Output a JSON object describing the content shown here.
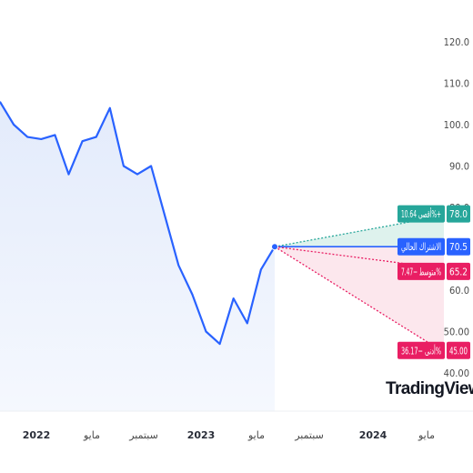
{
  "chart_data": {
    "type": "line",
    "x": [
      "2021-10",
      "2021-11",
      "2021-12",
      "2022-01",
      "2022-02",
      "2022-03",
      "2022-04",
      "2022-05",
      "2022-06",
      "2022-07",
      "2022-08",
      "2022-09",
      "2022-10",
      "2022-11",
      "2022-12",
      "2023-01",
      "2023-02",
      "2023-03",
      "2023-04",
      "2023-05",
      "2023-06"
    ],
    "series": [
      {
        "values": [
          105.5,
          100.0,
          97.0,
          96.5,
          97.5,
          88.0,
          96.0,
          97.0,
          104.0,
          90.0,
          88.0,
          90.0,
          78.0,
          66.0,
          59.0,
          50.0,
          47.0,
          58.0,
          52.0,
          65.0,
          70.5
        ],
        "color": "#2962ff"
      }
    ],
    "ylim": [
      40,
      120
    ],
    "yticks": [
      "120.0",
      "110.0",
      "100.0",
      "90.0",
      "80.0",
      "70.0",
      "60.0",
      "50.00",
      "40.00"
    ],
    "x_tick_labels": [
      {
        "label": "2022",
        "year": true
      },
      {
        "label": "مايو",
        "year": false
      },
      {
        "label": "سبتمبر",
        "year": false
      },
      {
        "label": "2023",
        "year": true
      },
      {
        "label": "مايو",
        "year": false
      },
      {
        "label": "سبتمبر",
        "year": false
      },
      {
        "label": "2024",
        "year": true
      },
      {
        "label": "مايو",
        "year": false
      }
    ],
    "forecast": {
      "current": {
        "label": "الاشتراك الحالي",
        "value": "70.5",
        "color": "#2962ff"
      },
      "high": {
        "label": "أقصى 10.64%+",
        "value": "78.0",
        "color": "#26a69a"
      },
      "average": {
        "label": "متوسط −7.47%",
        "value": "65.2",
        "color": "#e91e63"
      },
      "low": {
        "label": "أدنى −36.17%",
        "value": "45.00",
        "color": "#e91e63"
      }
    },
    "grid": false,
    "title": "",
    "xlabel": "",
    "ylabel": ""
  },
  "branding": {
    "logo_text": "TradingView"
  }
}
